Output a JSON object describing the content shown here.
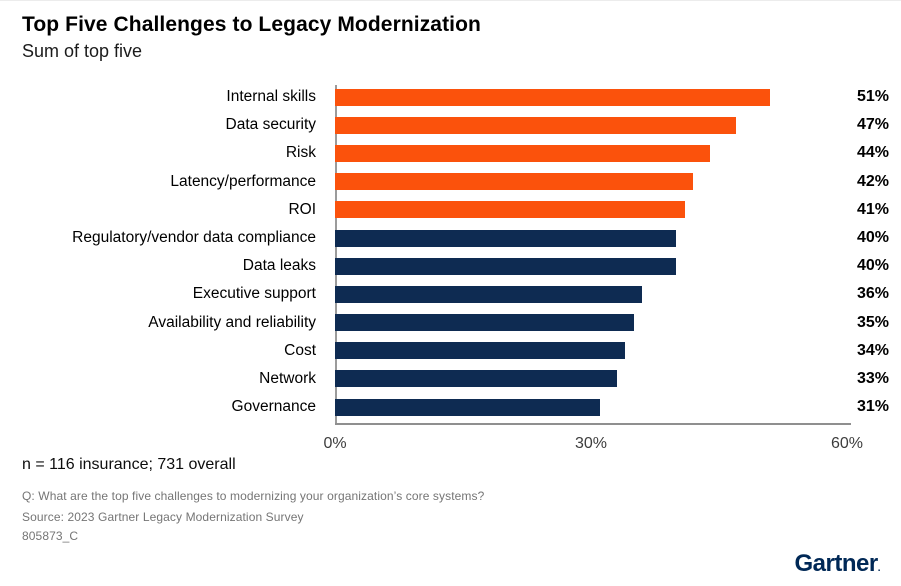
{
  "header": {
    "title": "Top Five Challenges to Legacy Modernization",
    "subtitle": "Sum of top five"
  },
  "chart_data": {
    "type": "bar",
    "orientation": "horizontal",
    "categories": [
      "Internal skills",
      "Data security",
      "Risk",
      "Latency/performance",
      "ROI",
      "Regulatory/vendor data compliance",
      "Data leaks",
      "Executive support",
      "Availability and reliability",
      "Cost",
      "Network",
      "Governance"
    ],
    "values": [
      51,
      47,
      44,
      42,
      41,
      40,
      40,
      36,
      35,
      34,
      33,
      31
    ],
    "value_suffix": "%",
    "highlight_count": 5,
    "colors": {
      "top_five": "#FB520C",
      "rest": "#0E2B52"
    },
    "xlim": [
      0,
      60
    ],
    "x_ticks": [
      "0%",
      "30%",
      "60%"
    ],
    "grid": false,
    "legend": "none",
    "value_labels_position": "end-of-bar"
  },
  "footer": {
    "sample_note": "n = 116 insurance; 731 overall",
    "question": "Q: What are the top five challenges to modernizing your organization’s core systems?",
    "source": "Source: 2023 Gartner Legacy Modernization Survey",
    "doc_id": "805873_C",
    "logo_text": "Gartner",
    "logo_mark": "."
  }
}
